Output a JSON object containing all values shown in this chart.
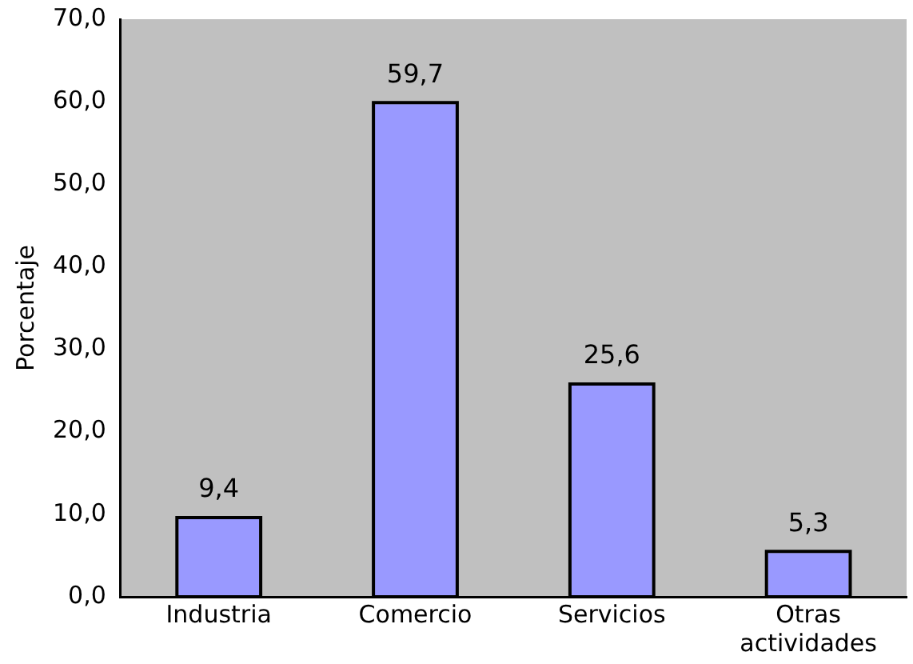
{
  "chart_data": {
    "type": "bar",
    "ylabel": "Porcentaje",
    "categories": [
      "Industria",
      "Comercio",
      "Servicios",
      "Otras actividades"
    ],
    "values": [
      9.4,
      59.7,
      25.6,
      5.3
    ],
    "value_labels": [
      "9,4",
      "59,7",
      "25,6",
      "5,3"
    ],
    "color": "#9999ff",
    "ylim": [
      0,
      70
    ],
    "yticks": [
      {
        "value": 0,
        "label": "0,0"
      },
      {
        "value": 10,
        "label": "10,0"
      },
      {
        "value": 20,
        "label": "20,0"
      },
      {
        "value": 30,
        "label": "30,0"
      },
      {
        "value": 40,
        "label": "40,0"
      },
      {
        "value": 50,
        "label": "50,0"
      },
      {
        "value": 60,
        "label": "60,0"
      },
      {
        "value": 70,
        "label": "70,0"
      }
    ],
    "grid": false,
    "legend": false
  }
}
